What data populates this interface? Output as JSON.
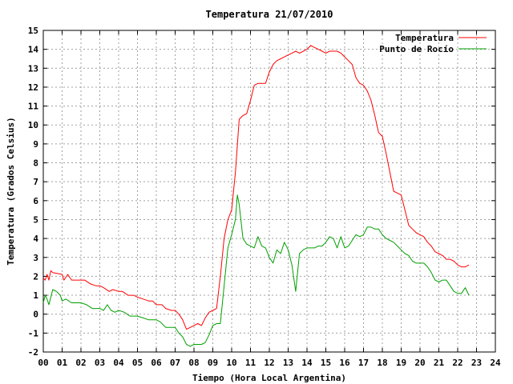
{
  "chart_data": {
    "type": "line",
    "title": "Temperatura 21/07/2010",
    "xlabel": "Tiempo (Hora Local Argentina)",
    "ylabel": "Temperatura (Grados Celsius)",
    "xlim": [
      0,
      24
    ],
    "ylim": [
      -2,
      15
    ],
    "x_tick_labels": [
      "00",
      "01",
      "02",
      "03",
      "04",
      "05",
      "06",
      "07",
      "08",
      "09",
      "10",
      "11",
      "12",
      "13",
      "14",
      "15",
      "16",
      "17",
      "18",
      "19",
      "20",
      "21",
      "22",
      "23",
      "24"
    ],
    "y_ticks": [
      -2,
      -1,
      0,
      1,
      2,
      3,
      4,
      5,
      6,
      7,
      8,
      9,
      10,
      11,
      12,
      13,
      14,
      15
    ],
    "grid": true,
    "legend_position": "top-right",
    "series": [
      {
        "name": "Temperatura",
        "color": "#ff0000",
        "x": [
          0.0,
          0.1,
          0.2,
          0.3,
          0.4,
          0.5,
          1.0,
          1.1,
          1.3,
          1.5,
          2.0,
          2.2,
          2.5,
          2.8,
          3.0,
          3.2,
          3.5,
          3.7,
          4.0,
          4.2,
          4.5,
          4.8,
          5.0,
          5.3,
          5.6,
          5.8,
          6.0,
          6.3,
          6.5,
          6.8,
          7.0,
          7.2,
          7.4,
          7.6,
          7.8,
          8.0,
          8.2,
          8.4,
          8.6,
          8.8,
          9.0,
          9.2,
          9.4,
          9.6,
          9.8,
          10.0,
          10.2,
          10.4,
          10.6,
          10.8,
          11.0,
          11.2,
          11.4,
          11.6,
          11.8,
          12.0,
          12.2,
          12.4,
          12.6,
          12.8,
          13.0,
          13.2,
          13.4,
          13.6,
          13.8,
          14.0,
          14.2,
          14.4,
          14.6,
          14.8,
          15.0,
          15.2,
          15.4,
          15.6,
          15.8,
          16.0,
          16.2,
          16.4,
          16.6,
          16.8,
          17.0,
          17.2,
          17.4,
          17.6,
          17.8,
          18.0,
          18.2,
          18.4,
          18.6,
          18.8,
          19.0,
          19.2,
          19.4,
          19.6,
          19.8,
          20.0,
          20.2,
          20.4,
          20.6,
          20.8,
          21.0,
          21.2,
          21.4,
          21.6,
          21.8,
          22.0,
          22.2,
          22.4,
          22.6
        ],
        "values": [
          1.9,
          1.8,
          2.1,
          1.8,
          2.3,
          2.2,
          2.1,
          1.8,
          2.1,
          1.8,
          1.8,
          1.8,
          1.6,
          1.5,
          1.5,
          1.4,
          1.2,
          1.3,
          1.2,
          1.2,
          1.0,
          1.0,
          0.9,
          0.8,
          0.7,
          0.7,
          0.5,
          0.5,
          0.3,
          0.2,
          0.2,
          0.0,
          -0.3,
          -0.8,
          -0.7,
          -0.6,
          -0.5,
          -0.6,
          -0.2,
          0.1,
          0.2,
          0.3,
          2.0,
          4.0,
          5.0,
          5.5,
          7.5,
          10.3,
          10.5,
          10.6,
          11.3,
          12.1,
          12.2,
          12.2,
          12.2,
          12.8,
          13.2,
          13.4,
          13.5,
          13.6,
          13.7,
          13.8,
          13.9,
          13.8,
          13.9,
          14.0,
          14.2,
          14.1,
          14.0,
          13.9,
          13.8,
          13.9,
          13.9,
          13.9,
          13.8,
          13.6,
          13.4,
          13.2,
          12.5,
          12.2,
          12.1,
          11.8,
          11.3,
          10.5,
          9.6,
          9.4,
          8.5,
          7.5,
          6.5,
          6.4,
          6.3,
          5.5,
          4.7,
          4.5,
          4.3,
          4.2,
          4.1,
          3.8,
          3.6,
          3.3,
          3.2,
          3.1,
          2.9,
          2.9,
          2.8,
          2.6,
          2.5,
          2.5,
          2.6
        ]
      },
      {
        "name": "Punto de Rocío",
        "color": "#00a000",
        "x": [
          0.0,
          0.1,
          0.2,
          0.3,
          0.4,
          0.5,
          0.7,
          0.9,
          1.0,
          1.2,
          1.5,
          2.0,
          2.3,
          2.6,
          3.0,
          3.2,
          3.4,
          3.6,
          3.8,
          4.0,
          4.3,
          4.6,
          5.0,
          5.3,
          5.6,
          6.0,
          6.2,
          6.5,
          6.8,
          7.0,
          7.2,
          7.4,
          7.6,
          7.8,
          8.0,
          8.2,
          8.4,
          8.6,
          8.8,
          9.0,
          9.2,
          9.4,
          9.6,
          9.8,
          10.0,
          10.2,
          10.3,
          10.4,
          10.6,
          10.8,
          11.0,
          11.2,
          11.4,
          11.6,
          11.8,
          12.0,
          12.2,
          12.4,
          12.6,
          12.8,
          13.0,
          13.2,
          13.4,
          13.6,
          13.8,
          14.0,
          14.2,
          14.4,
          14.6,
          14.8,
          15.0,
          15.2,
          15.4,
          15.6,
          15.8,
          16.0,
          16.2,
          16.4,
          16.6,
          16.8,
          17.0,
          17.2,
          17.4,
          17.6,
          17.8,
          18.0,
          18.2,
          18.4,
          18.6,
          18.8,
          19.0,
          19.2,
          19.4,
          19.6,
          19.8,
          20.0,
          20.2,
          20.4,
          20.6,
          20.8,
          21.0,
          21.2,
          21.4,
          21.6,
          21.8,
          22.0,
          22.2,
          22.4,
          22.6
        ],
        "values": [
          0.6,
          1.0,
          0.8,
          0.5,
          0.9,
          1.3,
          1.2,
          1.0,
          0.7,
          0.8,
          0.6,
          0.6,
          0.5,
          0.3,
          0.3,
          0.2,
          0.5,
          0.2,
          0.1,
          0.2,
          0.1,
          -0.1,
          -0.1,
          -0.2,
          -0.3,
          -0.3,
          -0.4,
          -0.7,
          -0.7,
          -0.7,
          -1.0,
          -1.2,
          -1.6,
          -1.7,
          -1.6,
          -1.6,
          -1.6,
          -1.5,
          -1.1,
          -0.6,
          -0.5,
          -0.5,
          1.5,
          3.5,
          4.2,
          5.0,
          6.3,
          5.8,
          4.0,
          3.7,
          3.6,
          3.5,
          4.1,
          3.6,
          3.5,
          3.0,
          2.7,
          3.4,
          3.2,
          3.8,
          3.4,
          2.6,
          1.2,
          3.2,
          3.4,
          3.5,
          3.5,
          3.5,
          3.6,
          3.6,
          3.8,
          4.1,
          4.0,
          3.5,
          4.1,
          3.5,
          3.6,
          3.9,
          4.2,
          4.1,
          4.2,
          4.6,
          4.6,
          4.5,
          4.5,
          4.2,
          4.0,
          3.9,
          3.8,
          3.6,
          3.4,
          3.2,
          3.1,
          2.8,
          2.7,
          2.7,
          2.7,
          2.5,
          2.2,
          1.8,
          1.7,
          1.8,
          1.8,
          1.5,
          1.2,
          1.1,
          1.1,
          1.4,
          1.0
        ]
      }
    ]
  }
}
